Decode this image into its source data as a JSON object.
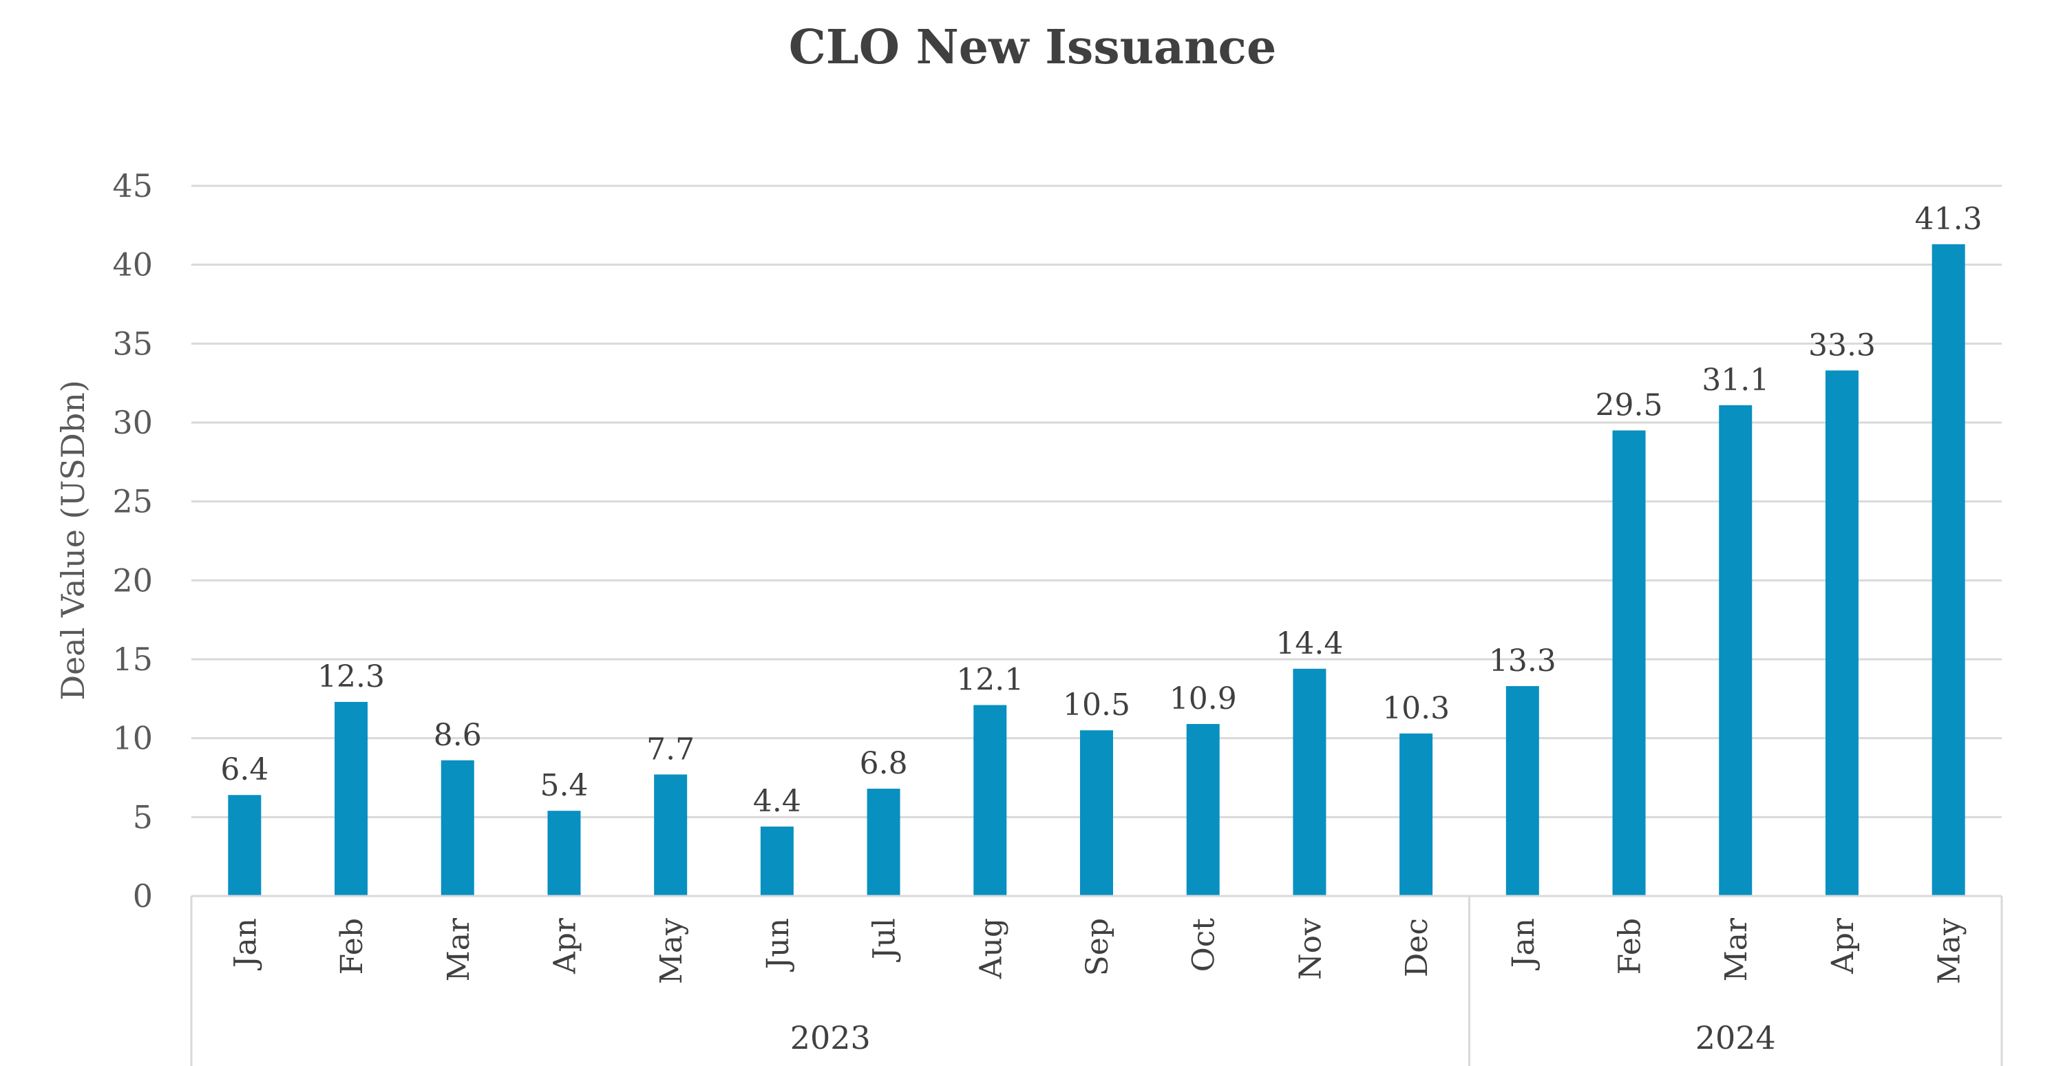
{
  "chart_data": {
    "type": "bar",
    "title": "CLO New Issuance",
    "ylabel": "Deal Value (USDbn)",
    "xlabel": "",
    "ylim": [
      0,
      45
    ],
    "yticks": [
      "0",
      "5",
      "10",
      "15",
      "20",
      "25",
      "30",
      "35",
      "40",
      "45"
    ],
    "grid": true,
    "bar_color": "#0890c0",
    "categories": [
      "Jan",
      "Feb",
      "Mar",
      "Apr",
      "May",
      "Jun",
      "Jul",
      "Aug",
      "Sep",
      "Oct",
      "Nov",
      "Dec",
      "Jan",
      "Feb",
      "Mar",
      "Apr",
      "May"
    ],
    "values": [
      6.4,
      12.3,
      8.6,
      5.4,
      7.7,
      4.4,
      6.8,
      12.1,
      10.5,
      10.9,
      14.4,
      10.3,
      13.3,
      29.5,
      31.1,
      33.3,
      41.3
    ],
    "value_labels": [
      "6.4",
      "12.3",
      "8.6",
      "5.4",
      "7.7",
      "4.4",
      "6.8",
      "12.1",
      "10.5",
      "10.9",
      "14.4",
      "10.3",
      "13.3",
      "29.5",
      "31.1",
      "33.3",
      "41.3"
    ],
    "groups": [
      {
        "label": "2023",
        "count": 12
      },
      {
        "label": "2024",
        "count": 5
      }
    ]
  }
}
